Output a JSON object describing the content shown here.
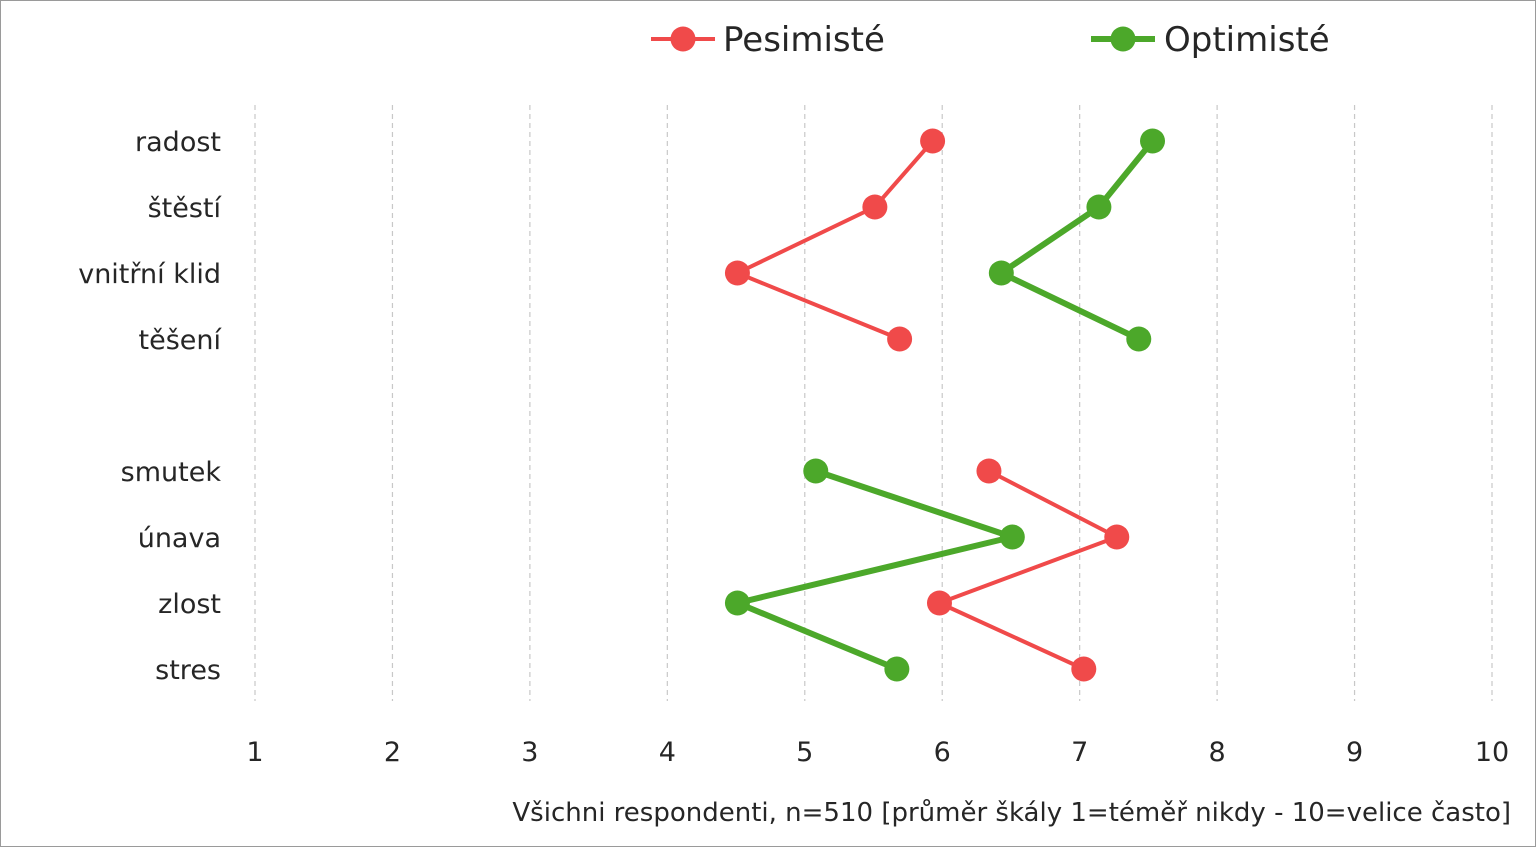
{
  "chart_data": {
    "type": "line",
    "orientation": "horizontal-values",
    "categories": [
      "radost",
      "štěstí",
      "vnitřní klid",
      "těšení",
      "",
      "smutek",
      "únava",
      "zlost",
      "stres"
    ],
    "series": [
      {
        "name": "Pesimisté",
        "color": "#f04a4a",
        "segments": [
          {
            "categories": [
              "radost",
              "štěstí",
              "vnitřní klid",
              "těšení"
            ],
            "values": [
              5.93,
              5.51,
              4.51,
              5.69
            ]
          },
          {
            "categories": [
              "smutek",
              "únava",
              "zlost",
              "stres"
            ],
            "values": [
              6.34,
              7.27,
              5.98,
              7.03
            ]
          }
        ]
      },
      {
        "name": "Optimisté",
        "color": "#4ca82a",
        "segments": [
          {
            "categories": [
              "radost",
              "štěstí",
              "vnitřní klid",
              "těšení"
            ],
            "values": [
              7.53,
              7.14,
              6.43,
              7.43
            ]
          },
          {
            "categories": [
              "smutek",
              "únava",
              "zlost",
              "stres"
            ],
            "values": [
              5.08,
              6.51,
              4.51,
              5.67
            ]
          }
        ]
      }
    ],
    "xlim": [
      1,
      10
    ],
    "xticks": [
      "1",
      "2",
      "3",
      "4",
      "5",
      "6",
      "7",
      "8",
      "9",
      "10"
    ],
    "xlabel": "Všichni respondenti, n=510 [průměr škály 1=téměř nikdy - 10=velice často]",
    "grid": "vertical dashed",
    "legend_position": "top"
  }
}
